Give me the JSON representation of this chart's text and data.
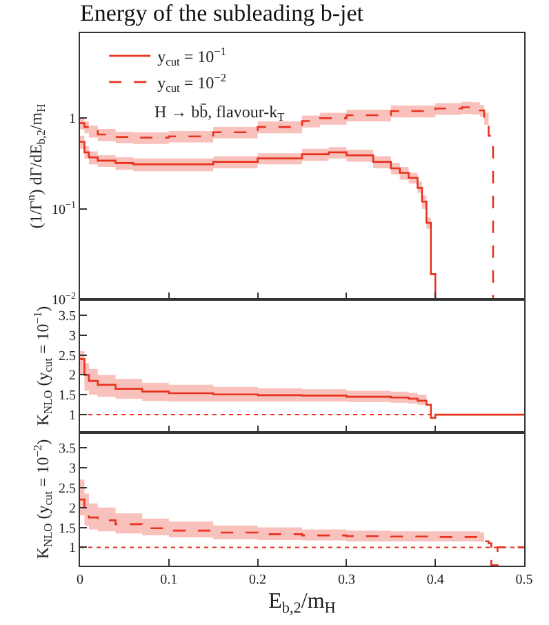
{
  "chart_data": [
    {
      "type": "step",
      "title": "Energy of the subleading b-jet",
      "ylabel": "(1/Γ$^{n}$) dΓ/dE$_{b,2}$/m$_{H}$",
      "log": "y",
      "legend": "top left",
      "tick_labels": "y",
      "xlim": [
        0,
        0.5
      ],
      "xticks": [
        0,
        0.1,
        0.2,
        0.3,
        0.4,
        0.5
      ],
      "ylim": [
        0.01,
        8.7
      ],
      "yticks": [
        {
          "value": 0.01,
          "label": "10$^{−2}$"
        },
        {
          "value": 0.1,
          "label": "10$^{−1}$"
        },
        1
      ],
      "annotations": [
        "H → bb̄, flavour-k$_{T}$"
      ],
      "series": [
        {
          "name": "y$_{cut}$ = 10$^{−1}$",
          "color": "#e8321e",
          "line_style": "solid",
          "x": [
            0,
            0.005,
            0.01,
            0.02,
            0.04,
            0.06,
            0.1,
            0.15,
            0.2,
            0.25,
            0.28,
            0.3,
            0.33,
            0.35,
            0.36,
            0.37,
            0.38,
            0.385,
            0.39,
            0.395,
            0.4
          ],
          "values": [
            0.55,
            0.42,
            0.37,
            0.34,
            0.32,
            0.31,
            0.31,
            0.33,
            0.36,
            0.4,
            0.42,
            0.39,
            0.33,
            0.28,
            0.25,
            0.22,
            0.17,
            0.12,
            0.07,
            0.019,
            0.01
          ],
          "lower": [
            0.46,
            0.36,
            0.31,
            0.29,
            0.27,
            0.26,
            0.26,
            0.28,
            0.31,
            0.34,
            0.36,
            0.33,
            0.28,
            0.24,
            0.21,
            0.19,
            0.15,
            0.1,
            0.06,
            0.016,
            null
          ],
          "upper": [
            0.64,
            0.49,
            0.43,
            0.39,
            0.37,
            0.36,
            0.36,
            0.38,
            0.41,
            0.46,
            0.48,
            0.45,
            0.38,
            0.32,
            0.29,
            0.25,
            0.2,
            0.14,
            0.08,
            0.022,
            null
          ]
        },
        {
          "name": "y$_{cut}$ = 10$^{−2}$",
          "color": "#e8321e",
          "line_style": "dashed",
          "x": [
            0,
            0.005,
            0.01,
            0.02,
            0.04,
            0.06,
            0.1,
            0.15,
            0.2,
            0.25,
            0.27,
            0.3,
            0.35,
            0.4,
            0.43,
            0.44,
            0.45,
            0.455,
            0.46,
            0.465
          ],
          "values": [
            0.88,
            0.8,
            0.72,
            0.66,
            0.62,
            0.61,
            0.63,
            0.7,
            0.8,
            0.93,
            1.0,
            1.08,
            1.2,
            1.28,
            1.32,
            1.3,
            1.22,
            1.0,
            0.64,
            0.01
          ],
          "lower": [
            0.75,
            0.68,
            0.61,
            0.56,
            0.53,
            0.52,
            0.54,
            0.6,
            0.68,
            0.79,
            0.85,
            0.92,
            1.02,
            1.09,
            1.12,
            1.1,
            1.04,
            0.85,
            0.54,
            null
          ],
          "upper": [
            1.01,
            0.92,
            0.83,
            0.76,
            0.71,
            0.7,
            0.72,
            0.8,
            0.92,
            1.07,
            1.15,
            1.24,
            1.38,
            1.47,
            1.52,
            1.5,
            1.4,
            1.15,
            0.74,
            null
          ]
        }
      ]
    },
    {
      "type": "step",
      "ylabel": "K$_{NLO}$ (y$_{cut}$ = 10$^{−1}$)",
      "tick_labels": "y",
      "xlim": [
        0,
        0.5
      ],
      "xticks": [
        0,
        0.1,
        0.2,
        0.3,
        0.4,
        0.5
      ],
      "ylim": [
        0.55,
        3.9
      ],
      "yticks": [
        1,
        1.5,
        2,
        2.5,
        3,
        3.5
      ],
      "ref_lines": [
        {
          "axis": "y",
          "value": 1,
          "color": "#e8321e",
          "line_style": "dotted"
        }
      ],
      "series": [
        {
          "color": "#e8321e",
          "line_style": "solid",
          "x": [
            0,
            0.005,
            0.01,
            0.02,
            0.04,
            0.07,
            0.1,
            0.15,
            0.2,
            0.25,
            0.3,
            0.35,
            0.37,
            0.38,
            0.39,
            0.395,
            0.4,
            0.5
          ],
          "values": [
            2.4,
            2.0,
            1.85,
            1.75,
            1.65,
            1.58,
            1.54,
            1.51,
            1.49,
            1.48,
            1.45,
            1.43,
            1.4,
            1.35,
            1.25,
            0.92,
            1.0,
            1.0
          ],
          "lower": [
            2.0,
            1.6,
            1.5,
            1.45,
            1.4,
            1.35,
            1.33,
            1.33,
            1.33,
            1.33,
            1.32,
            1.3,
            1.28,
            1.25,
            1.15,
            null,
            null,
            null
          ],
          "upper": [
            2.6,
            2.3,
            2.15,
            2.0,
            1.9,
            1.8,
            1.75,
            1.7,
            1.66,
            1.64,
            1.6,
            1.58,
            1.55,
            1.5,
            1.35,
            null,
            null,
            null
          ]
        }
      ]
    },
    {
      "type": "step",
      "xlabel": "E$_{b,2}$/m$_{H}$",
      "ylabel": "K$_{NLO}$ (y$_{cut}$ = 10$^{−2}$)",
      "xlim": [
        0,
        0.5
      ],
      "xticks": [
        0,
        0.1,
        0.2,
        0.3,
        0.4,
        0.5
      ],
      "ylim": [
        0.54,
        3.88
      ],
      "yticks": [
        1,
        1.5,
        2,
        2.5,
        3,
        3.5
      ],
      "ref_lines": [
        {
          "axis": "y",
          "value": 1,
          "color": "#e8321e",
          "line_style": "dotted"
        }
      ],
      "series": [
        {
          "color": "#e8321e",
          "line_style": "dashed",
          "x": [
            0,
            0.005,
            0.01,
            0.02,
            0.04,
            0.07,
            0.1,
            0.15,
            0.2,
            0.25,
            0.3,
            0.35,
            0.4,
            0.45,
            0.455,
            0.46,
            0.463,
            0.47,
            0.5
          ],
          "values": [
            2.2,
            1.95,
            1.75,
            1.68,
            1.58,
            1.48,
            1.42,
            1.37,
            1.33,
            1.3,
            1.28,
            1.27,
            1.26,
            1.25,
            1.15,
            1.1,
            0.55,
            1.0,
            1.0
          ],
          "lower": [
            1.8,
            1.55,
            1.45,
            1.4,
            1.35,
            1.3,
            1.25,
            1.2,
            1.18,
            1.17,
            1.15,
            1.15,
            1.15,
            1.14,
            1.05,
            null,
            null,
            null,
            null
          ],
          "upper": [
            2.7,
            2.35,
            2.1,
            2.0,
            1.85,
            1.72,
            1.65,
            1.55,
            1.5,
            1.45,
            1.42,
            1.4,
            1.4,
            1.38,
            1.25,
            null,
            null,
            null,
            null
          ]
        }
      ]
    }
  ]
}
